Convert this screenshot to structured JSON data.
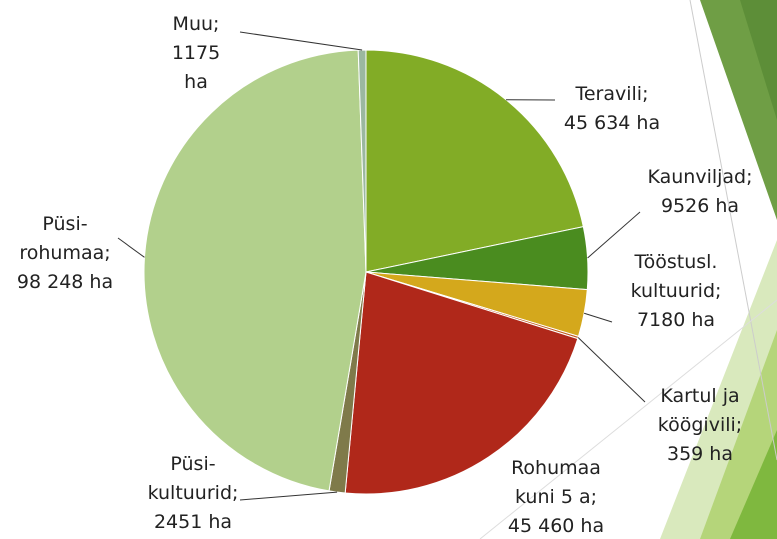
{
  "chart_data": {
    "type": "pie",
    "categories": [
      "Teravili;",
      "Kaunviljad;",
      "Tööstusl.\nkultuurid;",
      "Kartul ja\nköögivili;",
      "Rohumaa\nkuni 5 a;",
      "Püsi-\nkultuurid;",
      "Püsi-\nrohumaa;",
      "Muu;"
    ],
    "values": [
      45634,
      9526,
      7180,
      359,
      45460,
      2451,
      98248,
      1175
    ],
    "value_labels": [
      "45 634 ha",
      "9526 ha",
      "7180 ha",
      "359 ha",
      "45 460 ha",
      "2451 ha",
      "98 248 ha",
      "1175\nha"
    ],
    "colors": [
      "#82ac26",
      "#4a8c1f",
      "#d4a81c",
      "#c05a1a",
      "#b0281a",
      "#7f7a4a",
      "#b2d08c",
      "#9bb8a0"
    ]
  }
}
